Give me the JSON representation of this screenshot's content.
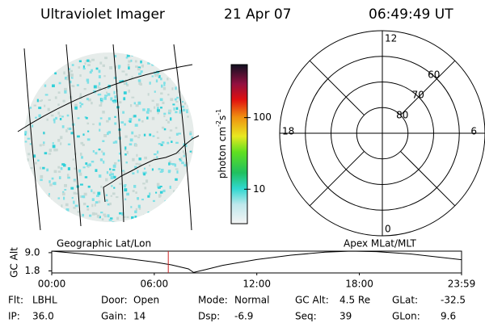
{
  "header": {
    "instrument": "Ultraviolet Imager",
    "date": "21 Apr 07",
    "time": "06:49:49 UT"
  },
  "colorbar": {
    "label": {
      "text": "photon cm",
      "exp1": "-2",
      "unit2": "s",
      "exp2": "-1"
    },
    "clim": [
      3.3,
      550
    ],
    "ticks": [
      10,
      100
    ],
    "log": true
  },
  "polar": {
    "lat_range": [
      50,
      90
    ],
    "lat_rings": [
      60,
      70,
      80
    ],
    "mlt_labels": [
      12,
      6,
      0,
      18
    ]
  },
  "timeline": {
    "left_label": "Geographic Lat/Lon",
    "right_label": "Apex MLat/MLT",
    "ylabel": "GC Alt",
    "ylim": [
      1.0,
      9.6
    ],
    "yticks": [
      {
        "value": 9.0,
        "label": "9.0"
      },
      {
        "value": 1.8,
        "label": "1.8"
      }
    ],
    "xlim": [
      0,
      23.98
    ],
    "xticks": [
      {
        "value": 0,
        "label": "00:00"
      },
      {
        "value": 6,
        "label": "06:00"
      },
      {
        "value": 12,
        "label": "12:00"
      },
      {
        "value": 18,
        "label": "18:00"
      },
      {
        "value": 23.98,
        "label": "23:59"
      }
    ],
    "hours": [
      0,
      2,
      4,
      6,
      7,
      8,
      8.3,
      9,
      10,
      12,
      14,
      16,
      17.5,
      19,
      21,
      23.98
    ],
    "altitude": [
      9.6,
      8.4,
      7.0,
      5.3,
      4.2,
      2.6,
      1.2,
      2.3,
      4.0,
      6.3,
      8.0,
      9.2,
      9.6,
      9.4,
      8.5,
      6.2
    ],
    "marker_hour": 6.82,
    "marker_color": "#cc2222"
  },
  "info": [
    [
      [
        "Flt:",
        "LBHL"
      ],
      [
        "Door:",
        "Open"
      ],
      [
        "Mode:",
        "Normal"
      ],
      [
        "GC Alt:",
        "4.5 Re"
      ],
      [
        "GLat:",
        "-32.5"
      ]
    ],
    [
      [
        "IP:",
        "36.0"
      ],
      [
        "Gain:",
        "14"
      ],
      [
        "Dsp:",
        "-6.9"
      ],
      [
        "Seq:",
        "39"
      ],
      [
        "GLon:",
        "9.6"
      ]
    ]
  ]
}
